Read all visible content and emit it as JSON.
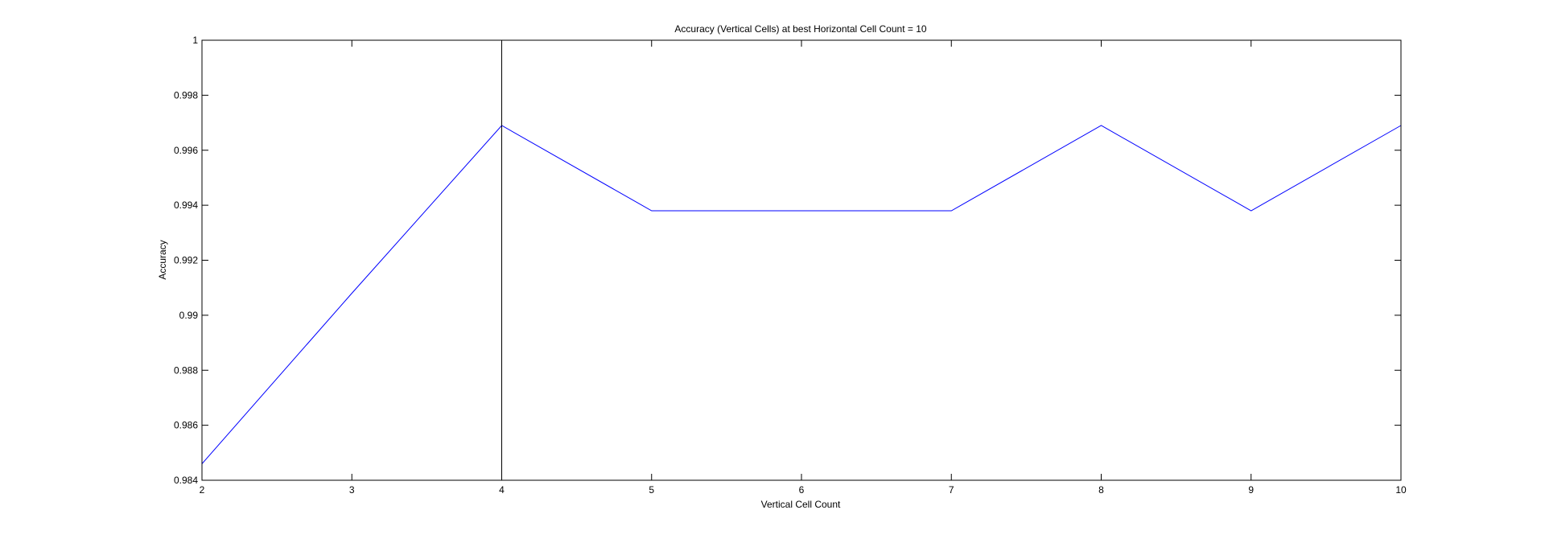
{
  "chart_data": {
    "type": "line",
    "title": "Accuracy (Vertical Cells) at best Horizontal Cell Count = 10",
    "xlabel": "Vertical Cell Count",
    "ylabel": "Accuracy",
    "xlim": [
      2,
      10
    ],
    "ylim": [
      0.984,
      1
    ],
    "xticks": [
      2,
      3,
      4,
      5,
      6,
      7,
      8,
      9,
      10
    ],
    "xtick_labels": [
      "2",
      "3",
      "4",
      "5",
      "6",
      "7",
      "8",
      "9",
      "10"
    ],
    "yticks": [
      0.984,
      0.986,
      0.988,
      0.99,
      0.992,
      0.994,
      0.996,
      0.998,
      1
    ],
    "ytick_labels": [
      "0.984",
      "0.986",
      "0.988",
      "0.99",
      "0.992",
      "0.994",
      "0.996",
      "0.998",
      "1"
    ],
    "grid": false,
    "series": [
      {
        "x": [
          2,
          3,
          4,
          5,
          6,
          7,
          8,
          9,
          10
        ],
        "values": [
          0.9846,
          0.9908,
          0.9969,
          0.9938,
          0.9938,
          0.9938,
          0.9969,
          0.9938,
          0.9969
        ],
        "color": "#0000ff"
      }
    ],
    "vlines": [
      {
        "x": 4,
        "color": "#000000"
      }
    ]
  }
}
